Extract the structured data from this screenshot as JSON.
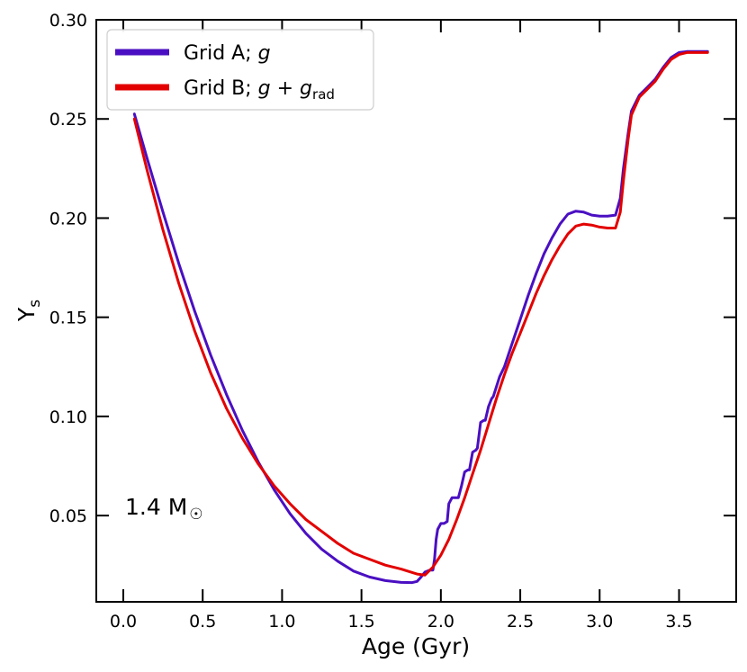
{
  "chart_data": {
    "type": "line",
    "title": "",
    "xlabel": "Age (Gyr)",
    "ylabel": "Y",
    "ylabel_sub": "s",
    "xlim": [
      -0.17,
      3.86
    ],
    "ylim": [
      0.0065,
      0.3
    ],
    "xticks": [
      0.0,
      0.5,
      1.0,
      1.5,
      2.0,
      2.5,
      3.0,
      3.5
    ],
    "xtick_labels": [
      "0.0",
      "0.5",
      "1.0",
      "1.5",
      "2.0",
      "2.5",
      "3.0",
      "3.5"
    ],
    "yticks": [
      0.05,
      0.1,
      0.15,
      0.2,
      0.25,
      0.3
    ],
    "ytick_labels": [
      "0.05",
      "0.10",
      "0.15",
      "0.20",
      "0.25",
      "0.30"
    ],
    "grid": false,
    "legend_position": "top-left",
    "annotation": {
      "text": "1.4 M",
      "symbol": "☉"
    },
    "series": [
      {
        "name": "Grid A; g",
        "legend_main": "Grid A; ",
        "legend_italic": "g",
        "color": "#4a0fc2",
        "x": [
          0.07,
          0.15,
          0.25,
          0.35,
          0.45,
          0.55,
          0.65,
          0.75,
          0.85,
          0.95,
          1.05,
          1.15,
          1.25,
          1.35,
          1.45,
          1.55,
          1.65,
          1.75,
          1.82,
          1.85,
          1.87,
          1.9,
          1.93,
          1.95,
          1.96,
          1.97,
          1.98,
          2.0,
          2.02,
          2.04,
          2.05,
          2.07,
          2.1,
          2.11,
          2.13,
          2.15,
          2.17,
          2.18,
          2.2,
          2.22,
          2.23,
          2.25,
          2.27,
          2.28,
          2.3,
          2.32,
          2.33,
          2.35,
          2.37,
          2.4,
          2.45,
          2.5,
          2.55,
          2.6,
          2.65,
          2.7,
          2.75,
          2.8,
          2.85,
          2.9,
          2.95,
          3.0,
          3.05,
          3.1,
          3.13,
          3.15,
          3.18,
          3.2,
          3.25,
          3.3,
          3.35,
          3.4,
          3.45,
          3.5,
          3.55,
          3.6,
          3.65,
          3.68
        ],
        "y": [
          0.2525,
          0.23,
          0.203,
          0.177,
          0.153,
          0.131,
          0.111,
          0.093,
          0.077,
          0.063,
          0.051,
          0.041,
          0.033,
          0.027,
          0.022,
          0.019,
          0.0172,
          0.0163,
          0.0162,
          0.0168,
          0.0185,
          0.0215,
          0.0225,
          0.0225,
          0.028,
          0.038,
          0.043,
          0.046,
          0.046,
          0.047,
          0.056,
          0.059,
          0.059,
          0.059,
          0.065,
          0.072,
          0.073,
          0.073,
          0.082,
          0.083,
          0.084,
          0.097,
          0.098,
          0.098,
          0.105,
          0.109,
          0.11,
          0.115,
          0.12,
          0.125,
          0.137,
          0.149,
          0.161,
          0.172,
          0.182,
          0.19,
          0.197,
          0.202,
          0.2035,
          0.203,
          0.2015,
          0.201,
          0.201,
          0.2015,
          0.21,
          0.225,
          0.243,
          0.254,
          0.262,
          0.266,
          0.27,
          0.276,
          0.281,
          0.2835,
          0.284,
          0.284,
          0.284,
          0.284
        ]
      },
      {
        "name": "Grid B; g + g_rad",
        "legend_main": "Grid B; ",
        "legend_italic": "g + g",
        "legend_sub": "rad",
        "color": "#e30000",
        "x": [
          0.07,
          0.15,
          0.25,
          0.35,
          0.45,
          0.55,
          0.65,
          0.75,
          0.85,
          0.95,
          1.05,
          1.15,
          1.25,
          1.35,
          1.45,
          1.55,
          1.65,
          1.75,
          1.85,
          1.9,
          1.95,
          2.0,
          2.05,
          2.1,
          2.15,
          2.2,
          2.25,
          2.3,
          2.35,
          2.4,
          2.45,
          2.5,
          2.55,
          2.6,
          2.65,
          2.7,
          2.75,
          2.8,
          2.85,
          2.9,
          2.95,
          3.0,
          3.05,
          3.1,
          3.13,
          3.15,
          3.18,
          3.2,
          3.25,
          3.3,
          3.35,
          3.4,
          3.45,
          3.5,
          3.55,
          3.6,
          3.65,
          3.68
        ],
        "y": [
          0.25,
          0.224,
          0.194,
          0.167,
          0.143,
          0.122,
          0.104,
          0.089,
          0.076,
          0.065,
          0.056,
          0.048,
          0.042,
          0.036,
          0.031,
          0.028,
          0.025,
          0.023,
          0.0205,
          0.02,
          0.024,
          0.03,
          0.038,
          0.048,
          0.059,
          0.071,
          0.083,
          0.096,
          0.109,
          0.121,
          0.132,
          0.142,
          0.152,
          0.162,
          0.171,
          0.179,
          0.186,
          0.192,
          0.196,
          0.197,
          0.1965,
          0.1955,
          0.195,
          0.195,
          0.203,
          0.219,
          0.24,
          0.252,
          0.261,
          0.265,
          0.269,
          0.275,
          0.28,
          0.2825,
          0.2835,
          0.2835,
          0.2835,
          0.2835
        ]
      }
    ]
  }
}
